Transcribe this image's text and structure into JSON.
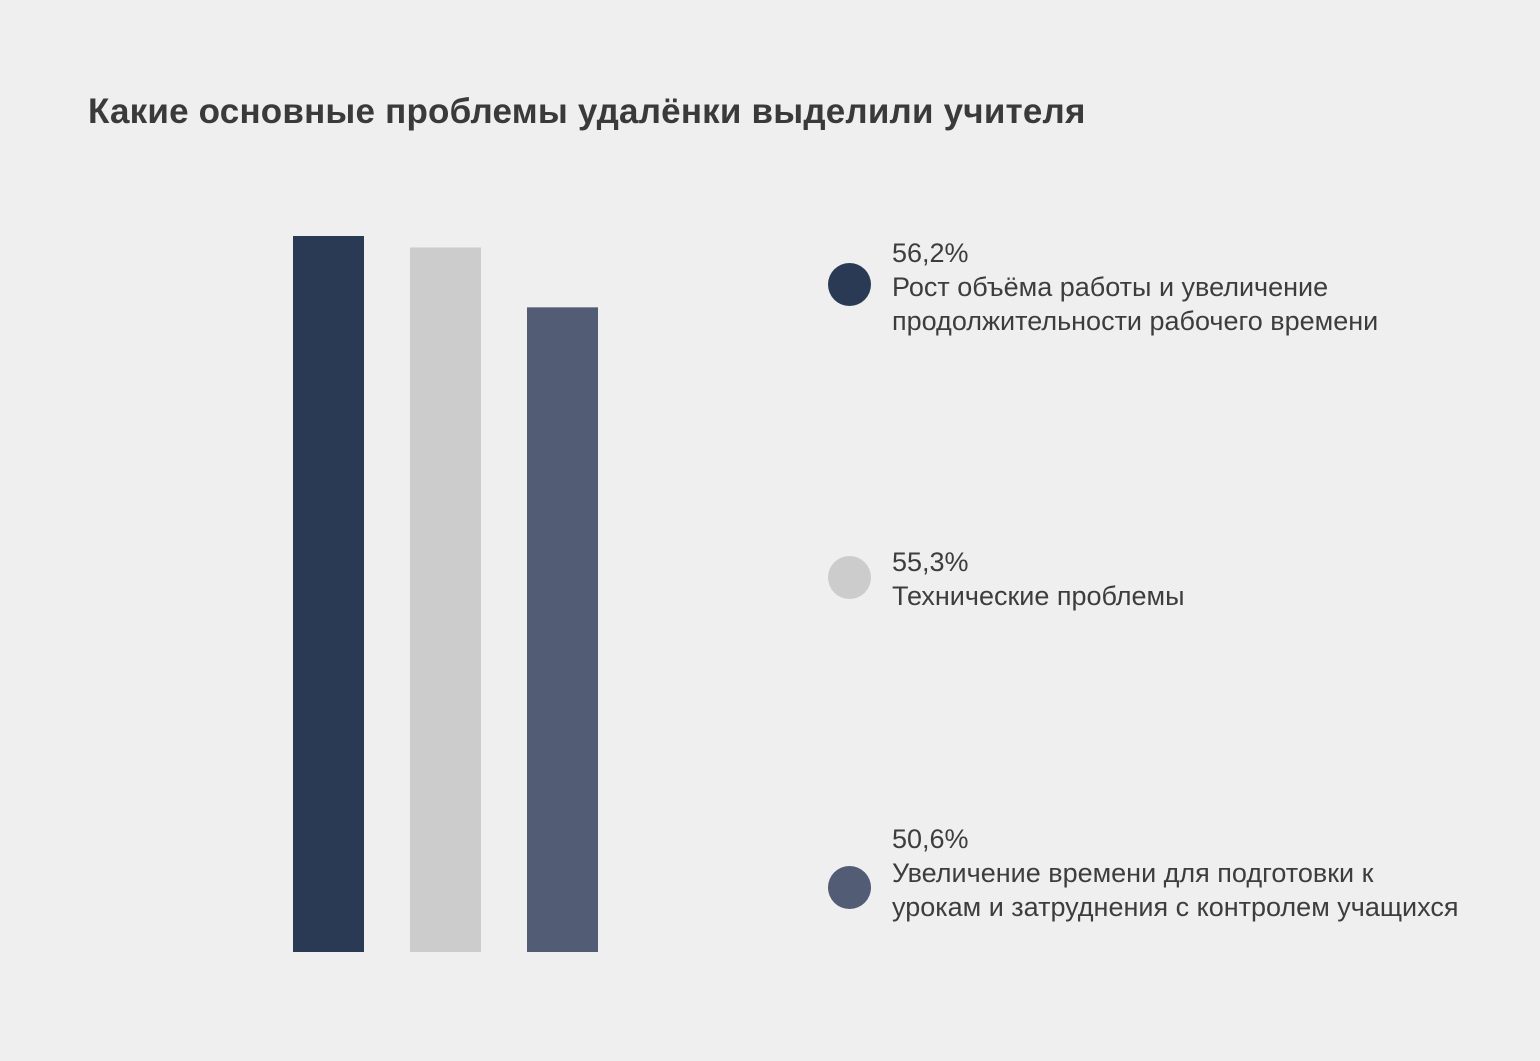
{
  "colors": {
    "background": "#efefef",
    "series": [
      "#2a3a55",
      "#cccccc",
      "#525c75"
    ]
  },
  "chart_data": {
    "type": "bar",
    "title": "Какие основные проблемы удалёнки выделили учителя",
    "xlabel": "",
    "ylabel": "",
    "ylim": [
      0,
      56.2
    ],
    "grid": false,
    "legend_position": "right",
    "categories": [
      "Рост объёма работы и увеличение продолжительности рабочего времени",
      "Технические проблемы",
      "Увеличение времени для подготовки к урокам и затруднения с контролем учащихся"
    ],
    "values": [
      56.2,
      55.3,
      50.6
    ],
    "value_labels": [
      "56,2%",
      "55,3%",
      "50,6%"
    ]
  }
}
